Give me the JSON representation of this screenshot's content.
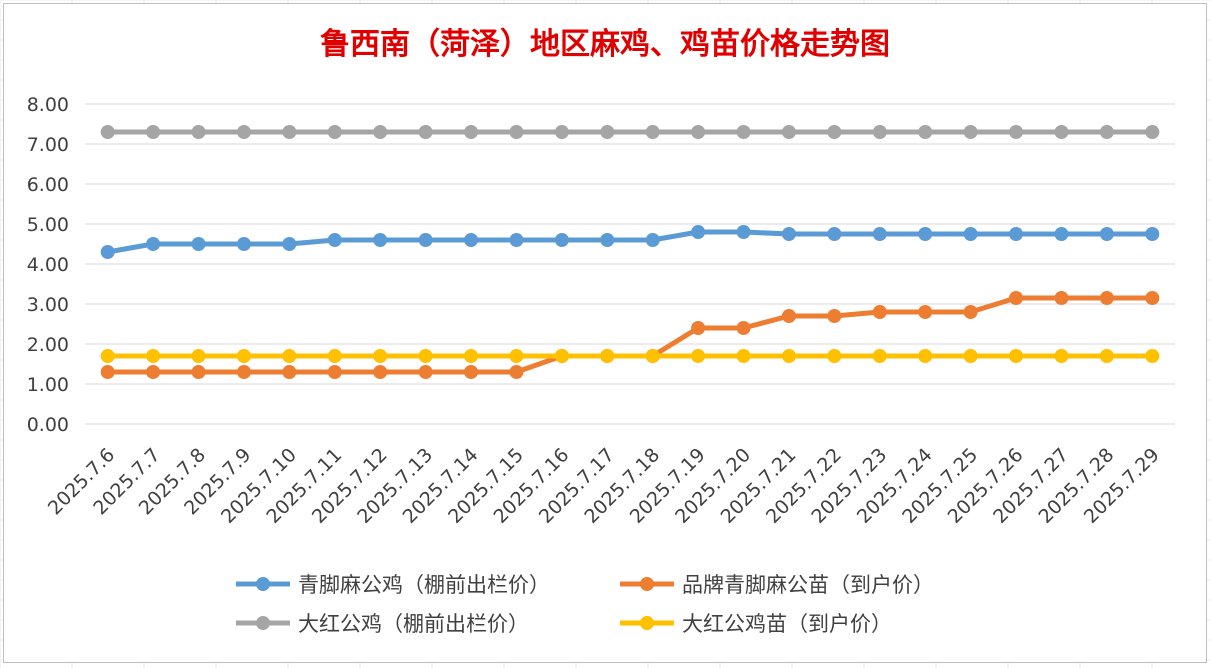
{
  "colors": {
    "title": "#e00000",
    "gridline": "#d9d9d9",
    "tick_text": "#404040"
  },
  "chart_data": {
    "type": "line",
    "title": "鲁西南（菏泽）地区麻鸡、鸡苗价格走势图",
    "ylim": [
      0,
      8
    ],
    "yticks": [
      "0.00",
      "1.00",
      "2.00",
      "3.00",
      "4.00",
      "5.00",
      "6.00",
      "7.00",
      "8.00"
    ],
    "grid": true,
    "legend_position": "bottom",
    "categories": [
      "2025.7.6",
      "2025.7.7",
      "2025.7.8",
      "2025.7.9",
      "2025.7.10",
      "2025.7.11",
      "2025.7.12",
      "2025.7.13",
      "2025.7.14",
      "2025.7.15",
      "2025.7.16",
      "2025.7.17",
      "2025.7.18",
      "2025.7.19",
      "2025.7.20",
      "2025.7.21",
      "2025.7.22",
      "2025.7.23",
      "2025.7.24",
      "2025.7.25",
      "2025.7.26",
      "2025.7.27",
      "2025.7.28",
      "2025.7.29"
    ],
    "series": [
      {
        "name": "青脚麻公鸡（棚前出栏价）",
        "color": "#5b9bd5",
        "values": [
          4.3,
          4.5,
          4.5,
          4.5,
          4.5,
          4.6,
          4.6,
          4.6,
          4.6,
          4.6,
          4.6,
          4.6,
          4.6,
          4.8,
          4.8,
          4.75,
          4.75,
          4.75,
          4.75,
          4.75,
          4.75,
          4.75,
          4.75,
          4.75
        ]
      },
      {
        "name": "品牌青脚麻公苗（到户价）",
        "color": "#ed7d31",
        "values": [
          1.3,
          1.3,
          1.3,
          1.3,
          1.3,
          1.3,
          1.3,
          1.3,
          1.3,
          1.3,
          1.7,
          1.7,
          1.7,
          2.4,
          2.4,
          2.7,
          2.7,
          2.8,
          2.8,
          2.8,
          3.15,
          3.15,
          3.15,
          3.15
        ]
      },
      {
        "name": "大红公鸡（棚前出栏价）",
        "color": "#a5a5a5",
        "values": [
          7.3,
          7.3,
          7.3,
          7.3,
          7.3,
          7.3,
          7.3,
          7.3,
          7.3,
          7.3,
          7.3,
          7.3,
          7.3,
          7.3,
          7.3,
          7.3,
          7.3,
          7.3,
          7.3,
          7.3,
          7.3,
          7.3,
          7.3,
          7.3
        ]
      },
      {
        "name": "大红公鸡苗（到户价）",
        "color": "#ffc000",
        "values": [
          1.7,
          1.7,
          1.7,
          1.7,
          1.7,
          1.7,
          1.7,
          1.7,
          1.7,
          1.7,
          1.7,
          1.7,
          1.7,
          1.7,
          1.7,
          1.7,
          1.7,
          1.7,
          1.7,
          1.7,
          1.7,
          1.7,
          1.7,
          1.7
        ]
      }
    ]
  }
}
